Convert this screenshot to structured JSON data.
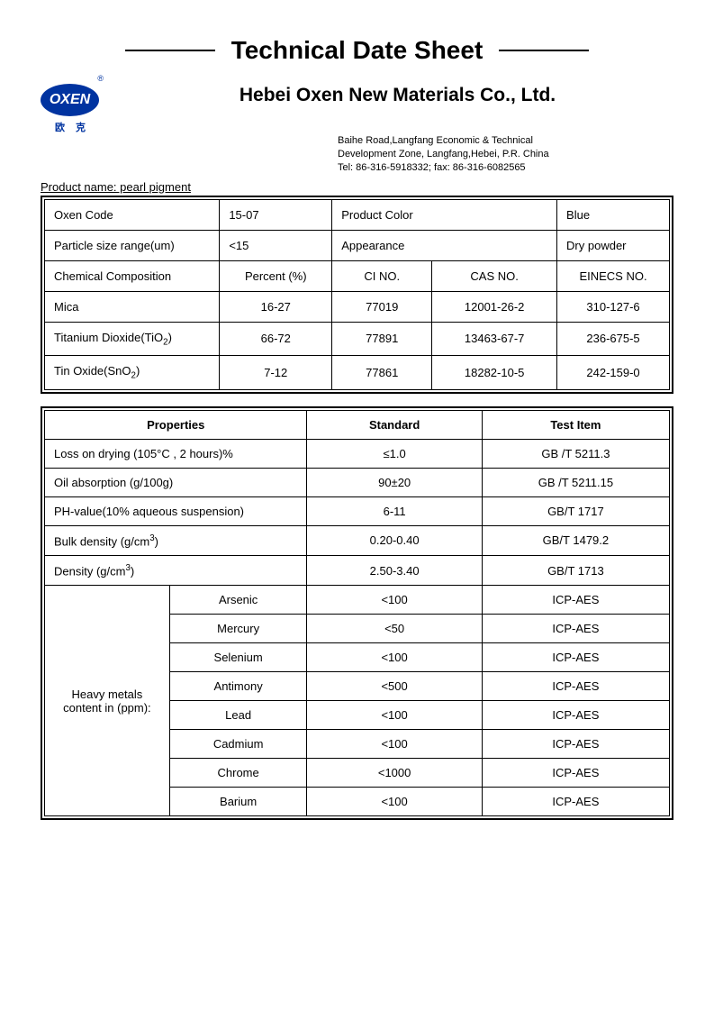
{
  "title": "Technical Date Sheet",
  "logo": {
    "text": "OXEN",
    "reg": "®",
    "sub": "欧克"
  },
  "company": "Hebei Oxen New Materials Co., Ltd.",
  "address_line1": "Baihe Road,Langfang Economic & Technical",
  "address_line2": "Development Zone, Langfang,Hebei, P.R. China",
  "address_line3": "Tel: 86-316-5918332;     fax: 86-316-6082565",
  "product_name_label": "Product name: pearl pigment",
  "colors": {
    "text": "#000000",
    "border": "#000000",
    "logo_bg": "#0033a0",
    "background": "#ffffff"
  },
  "table1": {
    "r1": {
      "c1": "Oxen Code",
      "c2": "15-07",
      "c3": "Product Color",
      "c4": "Blue"
    },
    "r2": {
      "c1": "Particle size range(um)",
      "c2": "<15",
      "c3": "Appearance",
      "c4": "Dry powder"
    },
    "header": {
      "c1": "Chemical Composition",
      "c2": "Percent (%)",
      "c3": "CI NO.",
      "c4": "CAS NO.",
      "c5": "EINECS NO."
    },
    "rows": [
      {
        "name": "Mica",
        "pct": "16-27",
        "ci": "77019",
        "cas": "12001-26-2",
        "ein": "310-127-6"
      },
      {
        "name_html": "Titanium Dioxide(TiO<sub>2</sub>)",
        "pct": "66-72",
        "ci": "77891",
        "cas": "13463-67-7",
        "ein": "236-675-5"
      },
      {
        "name_html": "Tin Oxide(SnO<sub>2</sub>)",
        "pct": "7-12",
        "ci": "77861",
        "cas": "18282-10-5",
        "ein": "242-159-0"
      }
    ]
  },
  "table2": {
    "header": {
      "c1": "Properties",
      "c2": "Standard",
      "c3": "Test Item"
    },
    "rows": [
      {
        "prop": "Loss on drying (105°C , 2 hours)%",
        "std": "≤1.0",
        "test": "GB /T 5211.3"
      },
      {
        "prop": "Oil absorption   (g/100g)",
        "std": "90±20",
        "test": "GB /T 5211.15"
      },
      {
        "prop": "PH-value(10% aqueous suspension)",
        "std": "6-11",
        "test": "GB/T 1717"
      },
      {
        "prop_html": "Bulk density (g/cm<sup>3</sup>)",
        "std": "0.20-0.40",
        "test": "GB/T 1479.2"
      },
      {
        "prop_html": "Density (g/cm<sup>3</sup>)",
        "std": "2.50-3.40",
        "test": "GB/T 1713"
      }
    ],
    "heavy_label": "Heavy metals content in (ppm):",
    "heavy": [
      {
        "name": "Arsenic",
        "std": "<100",
        "test": "ICP-AES"
      },
      {
        "name": "Mercury",
        "std": "<50",
        "test": "ICP-AES"
      },
      {
        "name": "Selenium",
        "std": "<100",
        "test": "ICP-AES"
      },
      {
        "name": "Antimony",
        "std": "<500",
        "test": "ICP-AES"
      },
      {
        "name": "Lead",
        "std": "<100",
        "test": "ICP-AES"
      },
      {
        "name": "Cadmium",
        "std": "<100",
        "test": "ICP-AES"
      },
      {
        "name": "Chrome",
        "std": "<1000",
        "test": "ICP-AES"
      },
      {
        "name": "Barium",
        "std": "<100",
        "test": "ICP-AES"
      }
    ]
  }
}
